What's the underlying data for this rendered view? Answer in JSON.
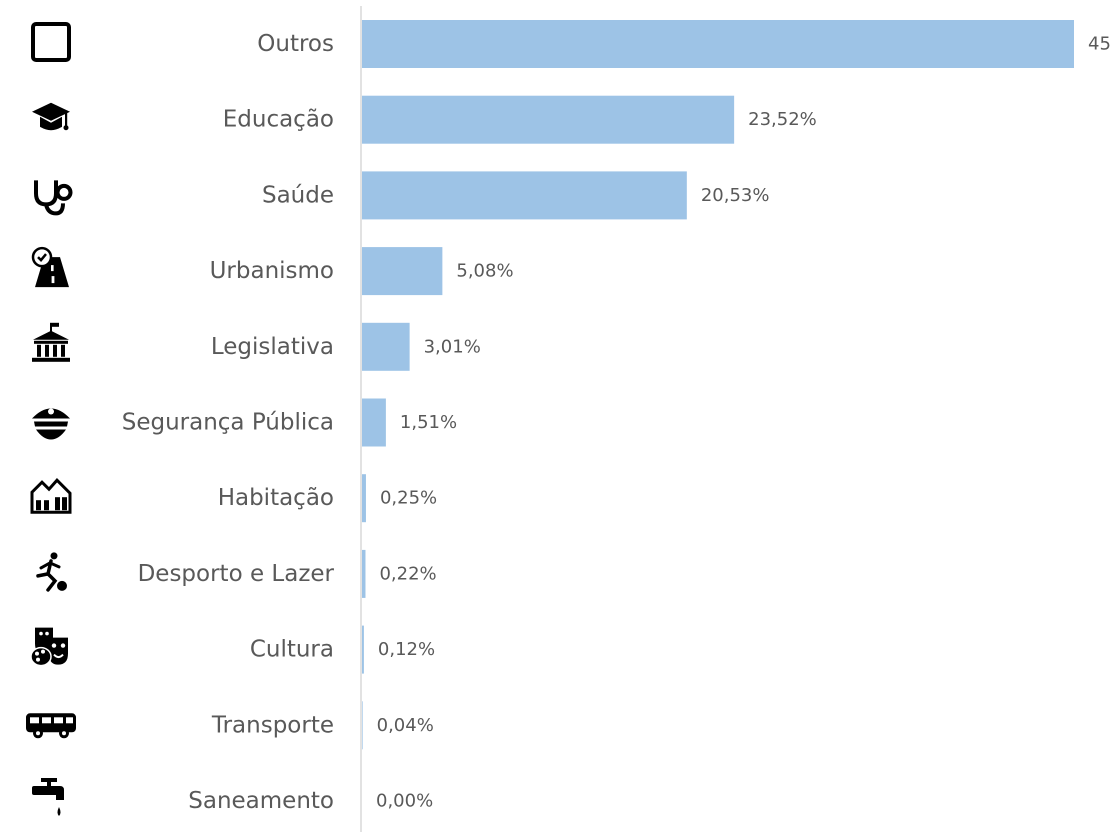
{
  "chart_data": {
    "type": "bar",
    "orientation": "horizontal",
    "title": "",
    "xlabel": "",
    "ylabel": "",
    "xlim": [
      0,
      45
    ],
    "grid": false,
    "legend": "none",
    "bar_color": "#9DC3E6",
    "axis_color": "#D9D9D9",
    "label_color": "#595959",
    "categories": [
      "Outros",
      "Educação",
      "Saúde",
      "Urbanismo",
      "Legislativa",
      "Segurança Pública",
      "Habitação",
      "Desporto e Lazer",
      "Cultura",
      "Transporte",
      "Saneamento"
    ],
    "values": [
      45.0,
      23.52,
      20.53,
      5.08,
      3.01,
      1.51,
      0.25,
      0.22,
      0.12,
      0.04,
      0.0
    ],
    "data_labels": [
      "45",
      "23,52%",
      "20,53%",
      "5,08%",
      "3,01%",
      "1,51%",
      "0,25%",
      "0,22%",
      "0,12%",
      "0,04%",
      "0,00%"
    ],
    "icons": [
      "square-outline-icon",
      "graduation-cap-icon",
      "stethoscope-icon",
      "road-check-icon",
      "government-building-icon",
      "police-cap-icon",
      "houses-icon",
      "football-player-icon",
      "theater-masks-palette-icon",
      "bus-icon",
      "water-tap-icon"
    ]
  }
}
